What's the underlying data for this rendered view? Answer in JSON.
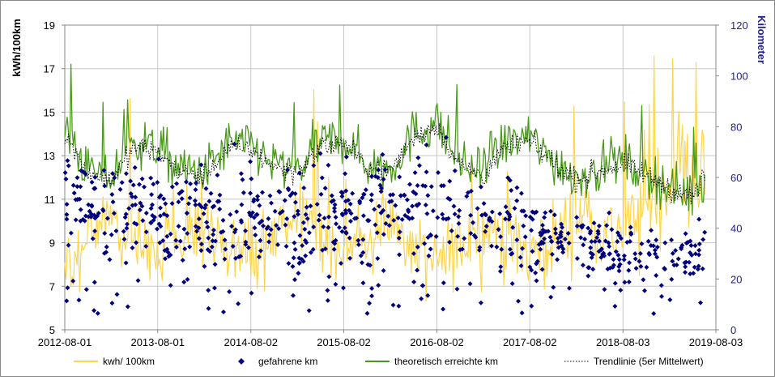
{
  "chart_data": {
    "type": "line",
    "title": "",
    "xlabel": "",
    "ylabel": "kWh/100km",
    "y2label": "Kilometer",
    "ylim": [
      5,
      19
    ],
    "y2lim": [
      0,
      120
    ],
    "yticks": [
      "5",
      "7",
      "9",
      "11",
      "13",
      "15",
      "17",
      "19"
    ],
    "y2ticks": [
      "0",
      "20",
      "40",
      "60",
      "80",
      "100",
      "120"
    ],
    "x_categories": [
      "2012-08-01",
      "2013-08-01",
      "2014-08-02",
      "2015-08-02",
      "2016-08-02",
      "2017-08-02",
      "2018-08-03",
      "2019-08-03"
    ],
    "grid": true,
    "legend_position": "bottom",
    "colors": {
      "consumption": "#ffd54a",
      "km": "#00007f",
      "theoretical": "#4a9a1a",
      "trend": "#000000",
      "right_axis": "#1f1f8f",
      "grid": "#c8c8c8"
    },
    "series": [
      {
        "name": "kwh/ 100km",
        "axis": "left",
        "style": "line",
        "keypoints": [
          {
            "x": "2012-08-01",
            "y": 8.0
          },
          {
            "x": "2012-10-15",
            "y": 9.2
          },
          {
            "x": "2013-01-15",
            "y": 10.2
          },
          {
            "x": "2013-04-15",
            "y": 9.0
          },
          {
            "x": "2013-08-01",
            "y": 8.6
          },
          {
            "x": "2013-11-15",
            "y": 9.4
          },
          {
            "x": "2014-02-01",
            "y": 10.0
          },
          {
            "x": "2014-05-01",
            "y": 9.0
          },
          {
            "x": "2014-08-02",
            "y": 8.3
          },
          {
            "x": "2014-12-01",
            "y": 9.6
          },
          {
            "x": "2015-03-01",
            "y": 10.2
          },
          {
            "x": "2015-06-01",
            "y": 8.8
          },
          {
            "x": "2015-08-02",
            "y": 8.4
          },
          {
            "x": "2015-12-01",
            "y": 9.6
          },
          {
            "x": "2016-02-15",
            "y": 10.0
          },
          {
            "x": "2016-05-01",
            "y": 8.5
          },
          {
            "x": "2016-08-02",
            "y": 7.9
          },
          {
            "x": "2016-12-01",
            "y": 9.3
          },
          {
            "x": "2017-03-01",
            "y": 9.8
          },
          {
            "x": "2017-06-01",
            "y": 8.8
          },
          {
            "x": "2017-08-02",
            "y": 8.5
          },
          {
            "x": "2017-12-01",
            "y": 9.4
          },
          {
            "x": "2018-03-01",
            "y": 10.5
          },
          {
            "x": "2018-06-01",
            "y": 9.4
          },
          {
            "x": "2018-08-03",
            "y": 9.6
          },
          {
            "x": "2018-11-01",
            "y": 10.5
          },
          {
            "x": "2019-02-01",
            "y": 12.2
          },
          {
            "x": "2019-04-01",
            "y": 12.5
          },
          {
            "x": "2019-06-15",
            "y": 11.8
          }
        ]
      },
      {
        "name": "gefahrene km",
        "axis": "right",
        "style": "marker",
        "keypoints": [
          {
            "x": "2012-08-01",
            "y": 52
          },
          {
            "x": "2013-02-01",
            "y": 46
          },
          {
            "x": "2013-08-01",
            "y": 48
          },
          {
            "x": "2014-02-01",
            "y": 44
          },
          {
            "x": "2014-08-02",
            "y": 45
          },
          {
            "x": "2015-02-01",
            "y": 42
          },
          {
            "x": "2015-08-02",
            "y": 44
          },
          {
            "x": "2016-02-01",
            "y": 47
          },
          {
            "x": "2016-08-02",
            "y": 50
          },
          {
            "x": "2017-02-01",
            "y": 42
          },
          {
            "x": "2017-08-02",
            "y": 38
          },
          {
            "x": "2018-02-01",
            "y": 34
          },
          {
            "x": "2018-08-03",
            "y": 30
          },
          {
            "x": "2019-02-01",
            "y": 28
          },
          {
            "x": "2019-06-15",
            "y": 30
          }
        ]
      },
      {
        "name": "theoretisch erreichte km",
        "axis": "left",
        "style": "line",
        "keypoints": [
          {
            "x": "2012-08-01",
            "y": 14.3
          },
          {
            "x": "2012-11-01",
            "y": 12.3
          },
          {
            "x": "2013-02-01",
            "y": 12.0
          },
          {
            "x": "2013-05-01",
            "y": 13.6
          },
          {
            "x": "2013-08-01",
            "y": 13.4
          },
          {
            "x": "2013-11-01",
            "y": 12.3
          },
          {
            "x": "2014-02-01",
            "y": 12.2
          },
          {
            "x": "2014-05-01",
            "y": 13.5
          },
          {
            "x": "2014-08-02",
            "y": 13.5
          },
          {
            "x": "2014-11-01",
            "y": 12.6
          },
          {
            "x": "2015-02-01",
            "y": 12.3
          },
          {
            "x": "2015-05-01",
            "y": 13.6
          },
          {
            "x": "2015-08-02",
            "y": 13.8
          },
          {
            "x": "2015-11-01",
            "y": 12.6
          },
          {
            "x": "2016-02-01",
            "y": 12.4
          },
          {
            "x": "2016-05-01",
            "y": 14.0
          },
          {
            "x": "2016-08-02",
            "y": 14.6
          },
          {
            "x": "2016-11-01",
            "y": 12.6
          },
          {
            "x": "2017-02-01",
            "y": 12.2
          },
          {
            "x": "2017-05-01",
            "y": 13.6
          },
          {
            "x": "2017-08-02",
            "y": 13.8
          },
          {
            "x": "2017-11-01",
            "y": 12.8
          },
          {
            "x": "2018-02-01",
            "y": 12.0
          },
          {
            "x": "2018-05-01",
            "y": 12.4
          },
          {
            "x": "2018-08-03",
            "y": 12.8
          },
          {
            "x": "2018-11-01",
            "y": 12.2
          },
          {
            "x": "2019-02-01",
            "y": 11.6
          },
          {
            "x": "2019-05-01",
            "y": 11.2
          },
          {
            "x": "2019-06-15",
            "y": 12.0
          }
        ]
      },
      {
        "name": "Trendlinie (5er Mittelwert)",
        "axis": "left",
        "style": "dotted-line",
        "keypoints": [
          {
            "x": "2012-08-01",
            "y": 14.0
          },
          {
            "x": "2012-11-01",
            "y": 12.2
          },
          {
            "x": "2013-02-01",
            "y": 11.9
          },
          {
            "x": "2013-05-01",
            "y": 13.4
          },
          {
            "x": "2013-08-01",
            "y": 13.2
          },
          {
            "x": "2013-11-01",
            "y": 12.2
          },
          {
            "x": "2014-02-01",
            "y": 12.1
          },
          {
            "x": "2014-05-01",
            "y": 13.3
          },
          {
            "x": "2014-08-02",
            "y": 13.3
          },
          {
            "x": "2014-11-01",
            "y": 12.5
          },
          {
            "x": "2015-02-01",
            "y": 12.2
          },
          {
            "x": "2015-05-01",
            "y": 13.4
          },
          {
            "x": "2015-08-02",
            "y": 13.6
          },
          {
            "x": "2015-11-01",
            "y": 12.5
          },
          {
            "x": "2016-02-01",
            "y": 12.3
          },
          {
            "x": "2016-05-01",
            "y": 13.8
          },
          {
            "x": "2016-08-02",
            "y": 14.4
          },
          {
            "x": "2016-11-01",
            "y": 12.5
          },
          {
            "x": "2017-02-01",
            "y": 12.1
          },
          {
            "x": "2017-05-01",
            "y": 13.4
          },
          {
            "x": "2017-08-02",
            "y": 13.6
          },
          {
            "x": "2017-11-01",
            "y": 12.7
          },
          {
            "x": "2018-02-01",
            "y": 11.9
          },
          {
            "x": "2018-05-01",
            "y": 12.3
          },
          {
            "x": "2018-08-03",
            "y": 12.6
          },
          {
            "x": "2018-11-01",
            "y": 12.1
          },
          {
            "x": "2019-02-01",
            "y": 11.5
          },
          {
            "x": "2019-05-01",
            "y": 11.1
          },
          {
            "x": "2019-06-15",
            "y": 11.9
          }
        ]
      }
    ],
    "legend": [
      {
        "label": "kwh/ 100km",
        "marker": "line",
        "color_key": "consumption"
      },
      {
        "label": "gefahrene km",
        "marker": "diamond",
        "color_key": "km"
      },
      {
        "label": "theoretisch erreichte km",
        "marker": "line",
        "color_key": "theoretical"
      },
      {
        "label": "Trendlinie (5er Mittelwert)",
        "marker": "dotted",
        "color_key": "trend"
      }
    ]
  }
}
